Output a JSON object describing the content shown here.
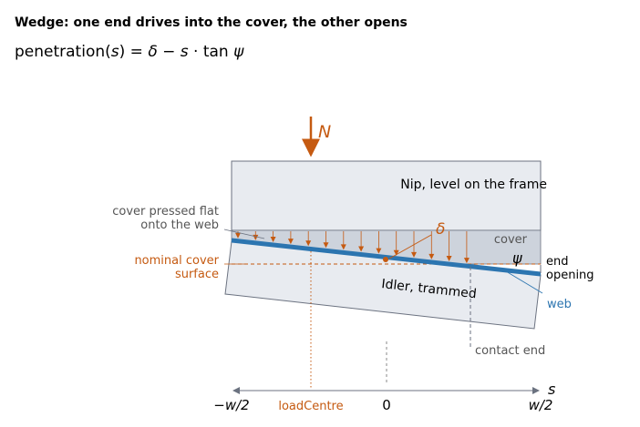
{
  "title": "Wedge: one end drives into the cover, the other opens",
  "formula": [
    "penetration(",
    "s",
    ") = ",
    "δ",
    " − ",
    "s",
    " · tan ",
    "ψ"
  ],
  "labels": {
    "load": "N",
    "nip": "Nip, level on the frame",
    "cover": "cover",
    "delta": "δ",
    "psi": "ψ",
    "cover_pressed": [
      "cover pressed flat",
      "onto the web"
    ],
    "nominal": [
      "nominal cover",
      "surface"
    ],
    "end_opening": [
      "end",
      "opening"
    ],
    "idler": "Idler, trammed",
    "web": "web",
    "contact_end": "contact end",
    "s_axis": "s",
    "left_end": "−w/2",
    "zero": "0",
    "right_end": "w/2",
    "load_centre": "loadCentre"
  }
}
